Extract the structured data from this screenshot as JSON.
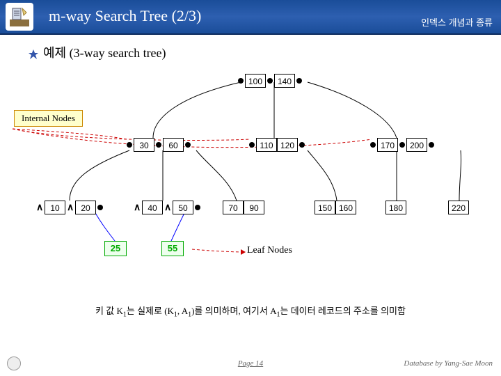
{
  "header": {
    "title": "m-way Search Tree (2/3)",
    "subtitle": "인덱스 개념과 종류"
  },
  "example_label": "예제 (3-way search tree)",
  "internal_nodes_label": "Internal Nodes",
  "leaf_nodes_label": "Leaf Nodes",
  "root": {
    "k1": "100",
    "k2": "140"
  },
  "internal": {
    "a": {
      "k1": "30",
      "k2": "60"
    },
    "b": {
      "k1": "110",
      "k2": "120"
    },
    "c": {
      "k1": "170",
      "k2": "200"
    }
  },
  "leaves": {
    "l1": {
      "k1": "10",
      "k2": "20"
    },
    "l2": {
      "k1": "40",
      "k2": "50"
    },
    "l3": {
      "k1": "70",
      "k2": "90"
    },
    "l4": {
      "k1": "150",
      "k2": "160"
    },
    "l5": {
      "k1": "180"
    },
    "l6": {
      "k1": "220"
    }
  },
  "green": {
    "g1": "25",
    "g2": "55"
  },
  "footnote_html": "키 값 K<sub>1</sub>는 실제로 (K<sub>1</sub>, A<sub>1</sub>)를 의미하며, 여기서 A<sub>1</sub>는 데이터 레코드의 주소를 의미함",
  "footer": {
    "page": "Page 14",
    "author": "Database by Yang-Sae Moon"
  },
  "colors": {
    "curve": "#0000ff",
    "leafline": "#cc0000",
    "green_border": "#00aa00",
    "internal_box_bg": "#ffffcc",
    "internal_box_border": "#cc8800"
  }
}
